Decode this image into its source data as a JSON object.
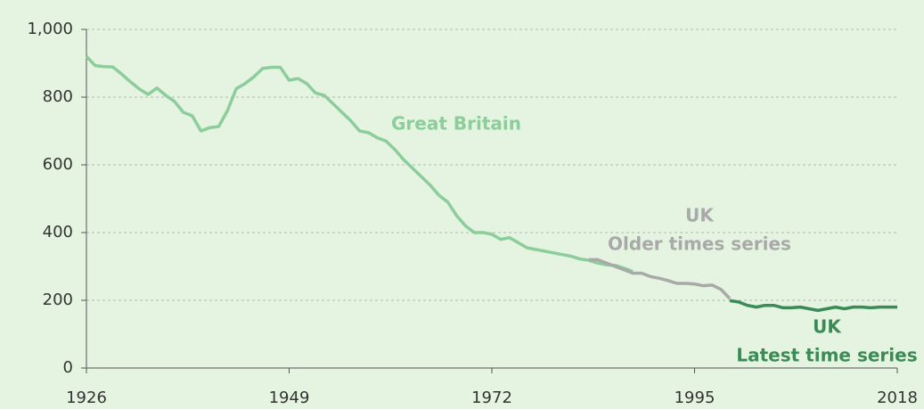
{
  "chart_data": {
    "type": "line",
    "x": [
      1926,
      1927,
      1928,
      1929,
      1930,
      1931,
      1932,
      1933,
      1934,
      1935,
      1936,
      1937,
      1938,
      1939,
      1940,
      1941,
      1942,
      1943,
      1944,
      1945,
      1946,
      1947,
      1948,
      1949,
      1950,
      1951,
      1952,
      1953,
      1954,
      1955,
      1956,
      1957,
      1958,
      1959,
      1960,
      1961,
      1962,
      1963,
      1964,
      1965,
      1966,
      1967,
      1968,
      1969,
      1970,
      1971,
      1972,
      1973,
      1974,
      1975,
      1976,
      1977,
      1978,
      1979,
      1980,
      1981,
      1982,
      1983,
      1984,
      1985,
      1986,
      1987,
      1988,
      1989,
      1990,
      1991,
      1992,
      1993,
      1994,
      1995,
      1996,
      1997,
      1998,
      1999,
      2000,
      2001,
      2002,
      2003,
      2004,
      2005,
      2006,
      2007,
      2008,
      2009,
      2010,
      2011,
      2012,
      2013,
      2014,
      2015,
      2016,
      2017,
      2018
    ],
    "series": [
      {
        "label": [
          "Great Britain"
        ],
        "color": "#8ccd9b",
        "values": [
          920,
          893,
          890,
          889,
          868,
          845,
          824,
          808,
          827,
          805,
          787,
          755,
          745,
          700,
          710,
          713,
          760,
          825,
          840,
          860,
          885,
          888,
          888,
          850,
          855,
          840,
          812,
          805,
          780,
          755,
          730,
          700,
          695,
          680,
          670,
          645,
          615,
          590,
          565,
          540,
          510,
          490,
          450,
          420,
          400,
          400,
          395,
          380,
          385,
          370,
          355,
          350,
          345,
          340,
          335,
          330,
          322,
          318,
          310,
          305,
          303,
          295,
          285,
          null,
          null,
          null,
          null,
          null,
          null,
          null,
          null,
          null,
          null,
          null,
          null,
          null,
          null,
          null,
          null,
          null,
          null,
          null,
          null,
          null,
          null,
          null,
          null,
          null,
          null,
          null,
          null,
          null,
          null
        ]
      },
      {
        "label": [
          "UK",
          "Older times series"
        ],
        "color": "#a9a9a9",
        "values": [
          null,
          null,
          null,
          null,
          null,
          null,
          null,
          null,
          null,
          null,
          null,
          null,
          null,
          null,
          null,
          null,
          null,
          null,
          null,
          null,
          null,
          null,
          null,
          null,
          null,
          null,
          null,
          null,
          null,
          null,
          null,
          null,
          null,
          null,
          null,
          null,
          null,
          null,
          null,
          null,
          null,
          null,
          null,
          null,
          null,
          null,
          null,
          null,
          null,
          null,
          null,
          null,
          null,
          null,
          null,
          null,
          null,
          320,
          320,
          310,
          300,
          290,
          280,
          280,
          270,
          265,
          258,
          250,
          250,
          248,
          243,
          245,
          232,
          205,
          null,
          null,
          null,
          null,
          null,
          null,
          null,
          null,
          null,
          null,
          null,
          null,
          null,
          null,
          null,
          null,
          null,
          null,
          null
        ]
      },
      {
        "label": [
          "UK",
          "Latest time series"
        ],
        "color": "#3b8b57",
        "values": [
          null,
          null,
          null,
          null,
          null,
          null,
          null,
          null,
          null,
          null,
          null,
          null,
          null,
          null,
          null,
          null,
          null,
          null,
          null,
          null,
          null,
          null,
          null,
          null,
          null,
          null,
          null,
          null,
          null,
          null,
          null,
          null,
          null,
          null,
          null,
          null,
          null,
          null,
          null,
          null,
          null,
          null,
          null,
          null,
          null,
          null,
          null,
          null,
          null,
          null,
          null,
          null,
          null,
          null,
          null,
          null,
          null,
          null,
          null,
          null,
          null,
          null,
          null,
          null,
          null,
          null,
          null,
          null,
          null,
          null,
          null,
          null,
          null,
          199,
          195,
          185,
          180,
          185,
          185,
          178,
          178,
          180,
          175,
          170,
          175,
          180,
          175,
          180,
          180,
          178,
          180,
          180,
          180
        ]
      }
    ],
    "xlim": [
      1926,
      2018
    ],
    "xticks": [
      1926,
      1949,
      1972,
      1995,
      2018
    ],
    "ylim": [
      0,
      1000
    ],
    "yticks": [
      0,
      200,
      400,
      600,
      800,
      {
        "value": 1000,
        "label": "1,000"
      }
    ],
    "grid": true
  }
}
